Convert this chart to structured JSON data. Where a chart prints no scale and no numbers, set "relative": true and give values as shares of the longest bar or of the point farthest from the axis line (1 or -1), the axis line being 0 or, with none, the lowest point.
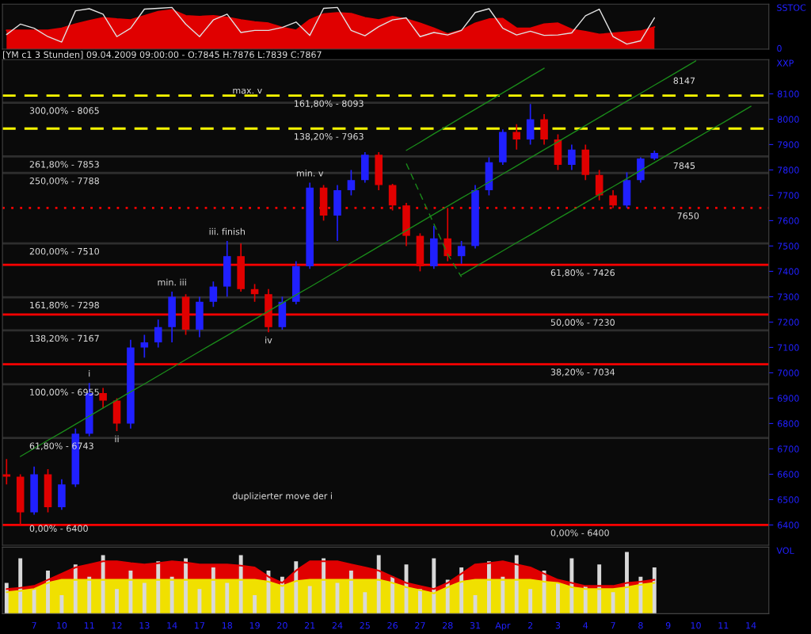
{
  "chart_data": [
    {
      "type": "line",
      "relative": true,
      "ylabel": "SSTOC",
      "tick_labels": false,
      "annotations": [
        "0"
      ],
      "categories": [
        null,
        null,
        null,
        null,
        null,
        null,
        null,
        null,
        null,
        null,
        null,
        null,
        null,
        null,
        null,
        null,
        null,
        null,
        null,
        null,
        null,
        null,
        null,
        null,
        null,
        null,
        null,
        null,
        null,
        null,
        null,
        null,
        null,
        null,
        null,
        null,
        null,
        null,
        null,
        null,
        null,
        null,
        null,
        null,
        null,
        null,
        null,
        null,
        null,
        null,
        null,
        null,
        null,
        null,
        null,
        null
      ],
      "series": [
        {
          "type": "area",
          "color": "#e00000",
          "values": [
            0.45,
            0.45,
            0.45,
            0.45,
            0.5,
            0.6,
            0.68,
            0.75,
            0.72,
            0.7,
            0.8,
            0.9,
            0.94,
            0.8,
            0.78,
            0.8,
            0.76,
            0.7,
            0.65,
            0.62,
            0.52,
            0.45,
            0.7,
            0.84,
            0.87,
            0.85,
            0.75,
            0.7,
            0.78,
            0.72,
            0.62,
            0.5,
            0.36,
            0.45,
            0.62,
            0.72,
            0.73,
            0.5,
            0.5,
            0.6,
            0.62,
            0.47,
            0.42,
            0.35,
            0.38,
            0.41,
            0.43,
            0.53,
            null,
            null,
            null,
            null,
            null,
            null,
            null,
            null
          ]
        },
        {
          "type": "line",
          "color": "#e0e0e0",
          "values": [
            0.35,
            0.6,
            0.5,
            0.3,
            0.17,
            0.92,
            0.97,
            0.84,
            0.3,
            0.5,
            0.96,
            0.98,
            1,
            0.6,
            0.3,
            0.7,
            0.84,
            0.4,
            0.45,
            0.45,
            0.52,
            0.65,
            0.33,
            0.98,
            1,
            0.45,
            0.32,
            0.54,
            0.7,
            0.75,
            0.3,
            0.4,
            0.34,
            0.45,
            0.88,
            0.97,
            0.5,
            0.34,
            0.43,
            0.33,
            0.34,
            0.39,
            0.8,
            0.96,
            0.3,
            0.12,
            0.2,
            0.75,
            null,
            null,
            null,
            null,
            null,
            null,
            null,
            null
          ]
        }
      ]
    },
    {
      "type": "candlestick",
      "title": "[YM c1 3 Stunden] 09.04.2009 09:00:00 - O:7845 H:7876 L:7839 C:7867",
      "ylabel": "XXP",
      "tick_labels": "y",
      "categories": [
        null,
        null,
        null,
        null,
        null,
        null,
        null,
        null,
        null,
        null,
        null,
        null,
        null,
        null,
        null,
        null,
        null,
        null,
        null,
        null,
        null,
        null,
        null,
        null,
        null,
        null,
        null,
        null,
        null,
        null,
        null,
        null,
        null,
        null,
        null,
        null,
        null,
        null,
        null,
        null,
        null,
        null,
        null,
        null,
        null,
        null,
        null,
        null,
        null,
        null,
        null,
        null,
        null,
        null,
        null,
        null
      ],
      "ylim": [
        6320,
        8235
      ],
      "yticks": [
        6400,
        6500,
        6600,
        6700,
        6800,
        6900,
        7000,
        7100,
        7200,
        7300,
        7400,
        7500,
        7600,
        7700,
        7800,
        7900,
        8000,
        8100
      ],
      "ohlc": [
        [
          6600,
          6660,
          6560,
          6590
        ],
        [
          6590,
          6600,
          6400,
          6450
        ],
        [
          6450,
          6630,
          6440,
          6600
        ],
        [
          6600,
          6620,
          6450,
          6470
        ],
        [
          6470,
          6580,
          6460,
          6560
        ],
        [
          6560,
          6780,
          6550,
          6760
        ],
        [
          6760,
          6960,
          6750,
          6920
        ],
        [
          6920,
          6940,
          6860,
          6890
        ],
        [
          6890,
          6900,
          6770,
          6800
        ],
        [
          6800,
          7130,
          6780,
          7100
        ],
        [
          7100,
          7150,
          7060,
          7120
        ],
        [
          7120,
          7210,
          7100,
          7180
        ],
        [
          7180,
          7320,
          7120,
          7300
        ],
        [
          7300,
          7310,
          7150,
          7170
        ],
        [
          7170,
          7300,
          7140,
          7280
        ],
        [
          7280,
          7360,
          7260,
          7340
        ],
        [
          7340,
          7520,
          7300,
          7460
        ],
        [
          7460,
          7510,
          7320,
          7330
        ],
        [
          7330,
          7350,
          7280,
          7310
        ],
        [
          7310,
          7330,
          7160,
          7180
        ],
        [
          7180,
          7300,
          7170,
          7280
        ],
        [
          7280,
          7440,
          7270,
          7420
        ],
        [
          7420,
          7750,
          7410,
          7730
        ],
        [
          7730,
          7740,
          7600,
          7620
        ],
        [
          7620,
          7740,
          7520,
          7720
        ],
        [
          7720,
          7800,
          7700,
          7760
        ],
        [
          7760,
          7870,
          7750,
          7860
        ],
        [
          7860,
          7870,
          7720,
          7740
        ],
        [
          7740,
          7745,
          7640,
          7660
        ],
        [
          7660,
          7670,
          7500,
          7540
        ],
        [
          7540,
          7550,
          7400,
          7420
        ],
        [
          7420,
          7580,
          7410,
          7530
        ],
        [
          7530,
          7650,
          7440,
          7460
        ],
        [
          7460,
          7520,
          7430,
          7500
        ],
        [
          7500,
          7740,
          7490,
          7720
        ],
        [
          7720,
          7850,
          7700,
          7830
        ],
        [
          7830,
          7960,
          7820,
          7950
        ],
        [
          7950,
          7980,
          7880,
          7920
        ],
        [
          7920,
          8060,
          7900,
          8000
        ],
        [
          8000,
          8020,
          7900,
          7920
        ],
        [
          7920,
          7940,
          7800,
          7820
        ],
        [
          7820,
          7900,
          7800,
          7880
        ],
        [
          7880,
          7900,
          7760,
          7780
        ],
        [
          7780,
          7800,
          7680,
          7700
        ],
        [
          7700,
          7720,
          7650,
          7660
        ],
        [
          7660,
          7790,
          7650,
          7760
        ],
        [
          7760,
          7850,
          7750,
          7845
        ],
        [
          7845,
          7876,
          7839,
          7867
        ],
        null,
        null,
        null,
        null,
        null,
        null,
        null,
        null
      ],
      "colors": [
        "#e00000",
        "#e00000",
        "#2020ff",
        "#e00000",
        "#2020ff",
        "#2020ff",
        "#2020ff",
        "#e00000",
        "#e00000",
        "#2020ff",
        "#2020ff",
        "#2020ff",
        "#2020ff",
        "#e00000",
        "#2020ff",
        "#2020ff",
        "#2020ff",
        "#e00000",
        "#e00000",
        "#e00000",
        "#2020ff",
        "#2020ff",
        "#2020ff",
        "#e00000",
        "#2020ff",
        "#2020ff",
        "#2020ff",
        "#e00000",
        "#e00000",
        "#e00000",
        "#e00000",
        "#2020ff",
        "#e00000",
        "#2020ff",
        "#2020ff",
        "#2020ff",
        "#2020ff",
        "#e00000",
        "#2020ff",
        "#e00000",
        "#e00000",
        "#2020ff",
        "#e00000",
        "#e00000",
        "#e00000",
        "#2020ff",
        "#2020ff",
        "#2020ff",
        null,
        null,
        null,
        null,
        null,
        null,
        null,
        null
      ],
      "series": [
        {
          "type": "line",
          "color": "#1a8a1a",
          "values": [
            null,
            6670,
            6702,
            6734,
            6765,
            6797,
            6829,
            6861,
            6893,
            6925,
            6956,
            6988,
            7020,
            7052,
            7084,
            7116,
            7147,
            7179,
            7211,
            7243,
            7275,
            7307,
            7338,
            7370,
            7402,
            7434,
            7466,
            7498,
            7529,
            7561,
            7593,
            7625,
            7657,
            7689,
            7720,
            7752,
            7784,
            7816,
            7848,
            7880,
            7911,
            7943,
            7975,
            8007,
            8039,
            8071,
            8102,
            8134,
            8166,
            8198,
            8230,
            null,
            null,
            null,
            null,
            null
          ]
        },
        {
          "type": "line",
          "color": "#1a8a1a",
          "values": [
            null,
            null,
            null,
            null,
            null,
            null,
            null,
            null,
            null,
            null,
            null,
            null,
            null,
            null,
            null,
            null,
            null,
            null,
            null,
            null,
            null,
            null,
            null,
            null,
            null,
            null,
            null,
            null,
            null,
            7877,
            7909,
            7942,
            7974,
            8007,
            8039,
            8071,
            8104,
            8136,
            8169,
            8201,
            null,
            null,
            null,
            null,
            null,
            null,
            null,
            null,
            null,
            null,
            null,
            null,
            null,
            null,
            null,
            null
          ]
        },
        {
          "type": "line",
          "color": "#1a8a1a",
          "values": [
            null,
            null,
            null,
            null,
            null,
            null,
            null,
            null,
            null,
            null,
            null,
            null,
            null,
            null,
            null,
            null,
            null,
            null,
            null,
            null,
            null,
            null,
            null,
            null,
            null,
            null,
            null,
            null,
            null,
            null,
            null,
            null,
            null,
            7386,
            7418,
            7449,
            7481,
            7513,
            7544,
            7576,
            7608,
            7639,
            7671,
            7703,
            7734,
            7766,
            7798,
            7829,
            7861,
            7892,
            7924,
            7956,
            7987,
            8019,
            8051,
            null
          ]
        },
        {
          "type": "line",
          "color": "#1a8a1a",
          "line_style": "dashed",
          "values": [
            null,
            null,
            null,
            null,
            null,
            null,
            null,
            null,
            null,
            null,
            null,
            null,
            null,
            null,
            null,
            null,
            null,
            null,
            null,
            null,
            null,
            null,
            null,
            null,
            null,
            null,
            null,
            null,
            null,
            7825,
            7706,
            7587,
            7468,
            7378,
            null,
            null,
            null,
            null,
            null,
            null,
            null,
            null,
            null,
            null,
            null,
            null,
            null,
            null,
            null,
            null,
            null,
            null,
            null,
            null,
            null,
            null
          ]
        }
      ],
      "ref_lines": [
        {
          "axis": "y",
          "value": 8065,
          "color": "#2e2e2e"
        },
        {
          "axis": "y",
          "value": 7853,
          "color": "#2e2e2e"
        },
        {
          "axis": "y",
          "value": 7788,
          "color": "#2e2e2e"
        },
        {
          "axis": "y",
          "value": 7510,
          "color": "#2e2e2e"
        },
        {
          "axis": "y",
          "value": 7298,
          "color": "#2e2e2e"
        },
        {
          "axis": "y",
          "value": 7167,
          "color": "#2e2e2e"
        },
        {
          "axis": "y",
          "value": 6955,
          "color": "#2e2e2e"
        },
        {
          "axis": "y",
          "value": 6743,
          "color": "#2e2e2e"
        },
        {
          "axis": "y",
          "value": 8093,
          "color": "#ffff00",
          "line_style": "dashed"
        },
        {
          "axis": "y",
          "value": 7963,
          "color": "#ffff00",
          "line_style": "dashed"
        },
        {
          "axis": "y",
          "value": 7650,
          "color": "#ff0000",
          "line_style": "dotted",
          "label": "7650"
        },
        {
          "axis": "y",
          "value": 7426,
          "color": "#ff0000"
        },
        {
          "axis": "y",
          "value": 7230,
          "color": "#ff0000"
        },
        {
          "axis": "y",
          "value": 7034,
          "color": "#ff0000"
        },
        {
          "axis": "y",
          "value": 6400,
          "color": "#ff0000"
        }
      ],
      "annotations": [
        {
          "text": "300,00% - 8065",
          "y": 8065
        },
        {
          "text": "261,80% - 7853",
          "y": 7853
        },
        {
          "text": "250,00% - 7788",
          "y": 7788
        },
        {
          "text": "200,00% - 7510",
          "y": 7510
        },
        {
          "text": "161,80% - 7298",
          "y": 7298
        },
        {
          "text": "138,20% - 7167",
          "y": 7167
        },
        {
          "text": "100,00% - 6955",
          "y": 6955
        },
        {
          "text": "61,80% - 6743",
          "y": 6743
        },
        {
          "text": "161,80% - 8093",
          "y": 8093
        },
        {
          "text": "138,20% - 7963",
          "y": 7963
        },
        {
          "text": "61,80% - 7426",
          "y": 7426
        },
        {
          "text": "50,00% - 7230",
          "y": 7230
        },
        {
          "text": "38,20% - 7034",
          "y": 7034
        },
        {
          "text": "0,00% - 6400",
          "y": 6400
        },
        {
          "text": "min. v",
          "y": 7750
        },
        {
          "text": "iii. finish",
          "y": 7520
        },
        {
          "text": "min. iii",
          "y": 7320
        },
        {
          "text": "i",
          "y": 6960
        },
        {
          "text": "ii",
          "y": 6770
        },
        {
          "text": "iv",
          "y": 7160
        },
        "max. v",
        "duplizierter move der i",
        "7845",
        "8147",
        "0,00% - 6400"
      ]
    },
    {
      "type": "bar",
      "relative": true,
      "ylabel": "VOL",
      "tick_labels": "x",
      "categories": [
        null,
        null,
        "7",
        null,
        "10",
        null,
        "11",
        null,
        "12",
        null,
        "13",
        null,
        "14",
        null,
        "17",
        null,
        "18",
        null,
        "19",
        null,
        "20",
        null,
        "21",
        null,
        "24",
        null,
        "25",
        null,
        "26",
        null,
        "27",
        null,
        "28",
        null,
        "31",
        null,
        "Apr",
        null,
        "2",
        null,
        "3",
        null,
        "4",
        null,
        "7",
        null,
        "8",
        null,
        "9",
        null,
        "10",
        null,
        "11",
        null,
        "14",
        null
      ],
      "series": [
        {
          "type": "area",
          "color": "#e00000",
          "values": [
            0.4,
            0.42,
            0.45,
            0.55,
            0.65,
            0.75,
            0.8,
            0.85,
            0.85,
            0.82,
            0.8,
            0.82,
            0.85,
            0.83,
            0.8,
            0.8,
            0.8,
            0.78,
            0.75,
            0.6,
            0.5,
            0.7,
            0.85,
            0.85,
            0.85,
            0.8,
            0.75,
            0.7,
            0.6,
            0.5,
            0.45,
            0.4,
            0.5,
            0.65,
            0.8,
            0.82,
            0.85,
            0.8,
            0.75,
            0.65,
            0.55,
            0.5,
            0.45,
            0.45,
            0.45,
            0.5,
            0.52,
            0.55,
            null,
            null,
            null,
            null,
            null,
            null,
            null,
            null
          ]
        },
        {
          "type": "area",
          "color": "#f0e000",
          "values": [
            0.35,
            0.37,
            0.4,
            0.5,
            0.55,
            0.55,
            0.55,
            0.55,
            0.55,
            0.55,
            0.55,
            0.55,
            0.55,
            0.55,
            0.55,
            0.55,
            0.55,
            0.55,
            0.55,
            0.52,
            0.45,
            0.53,
            0.55,
            0.55,
            0.55,
            0.55,
            0.55,
            0.55,
            0.5,
            0.43,
            0.38,
            0.33,
            0.43,
            0.52,
            0.55,
            0.55,
            0.55,
            0.55,
            0.55,
            0.52,
            0.5,
            0.43,
            0.4,
            0.4,
            0.4,
            0.43,
            0.47,
            0.5,
            null,
            null,
            null,
            null,
            null,
            null,
            null,
            null
          ]
        },
        {
          "type": "bar",
          "color": "#d8d8d8",
          "values": [
            0.5,
            0.9,
            0.4,
            0.7,
            0.3,
            0.8,
            0.6,
            0.95,
            0.4,
            0.7,
            0.5,
            0.85,
            0.6,
            0.9,
            0.4,
            0.75,
            0.5,
            0.95,
            0.3,
            0.7,
            0.6,
            0.85,
            0.45,
            0.9,
            0.5,
            0.7,
            0.35,
            0.95,
            0.6,
            0.8,
            0.4,
            0.9,
            0.55,
            0.75,
            0.3,
            0.85,
            0.6,
            0.95,
            0.4,
            0.7,
            0.5,
            0.9,
            0.45,
            0.8,
            0.35,
            1.0,
            0.6,
            0.75,
            null,
            null,
            null,
            null,
            null,
            null,
            null,
            null
          ]
        }
      ]
    }
  ]
}
